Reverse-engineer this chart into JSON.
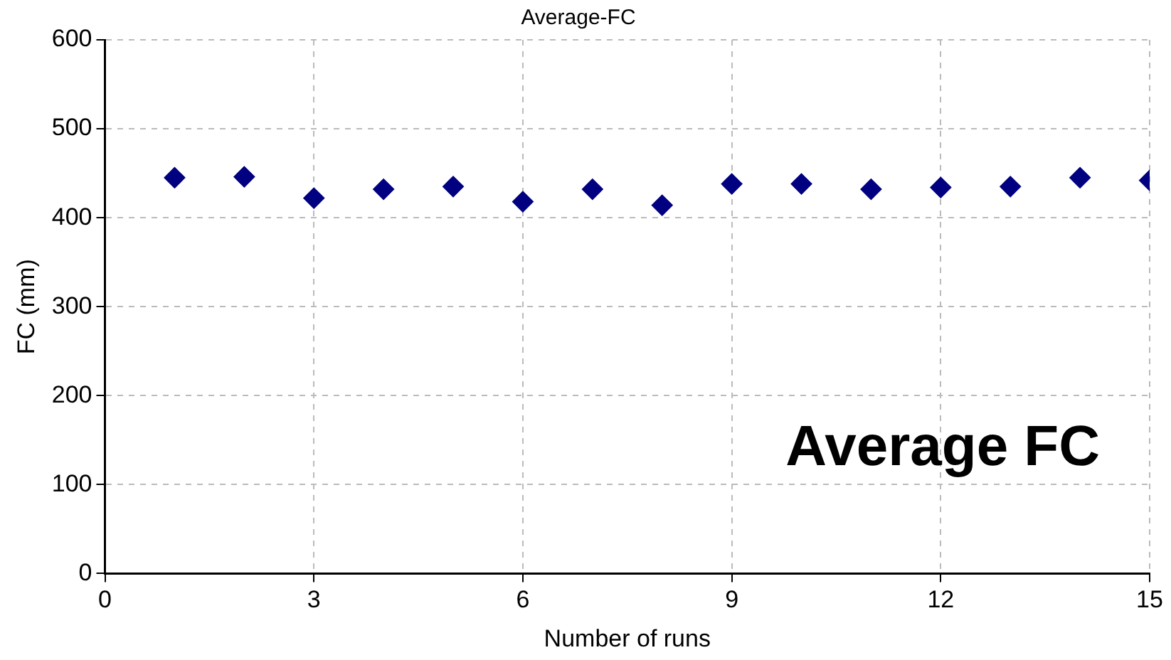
{
  "chart_data": {
    "type": "scatter",
    "title": "Average-FC",
    "xlabel": "Number of runs",
    "ylabel": "FC (mm)",
    "x": [
      1,
      2,
      3,
      4,
      5,
      6,
      7,
      8,
      9,
      10,
      11,
      12,
      13,
      14,
      15
    ],
    "series": [
      {
        "color": "#000080",
        "values": [
          445,
          446,
          422,
          432,
          435,
          418,
          432,
          414,
          438,
          438,
          432,
          434,
          435,
          445,
          442
        ]
      }
    ],
    "xlim": [
      0,
      15
    ],
    "xticks": [
      0,
      3,
      6,
      9,
      12,
      15
    ],
    "ylim": [
      0,
      600
    ],
    "yticks": [
      0,
      100,
      200,
      300,
      400,
      500,
      600
    ],
    "grid": true,
    "marker": "diamond",
    "legend": false,
    "annotations": [
      "Average FC"
    ]
  }
}
